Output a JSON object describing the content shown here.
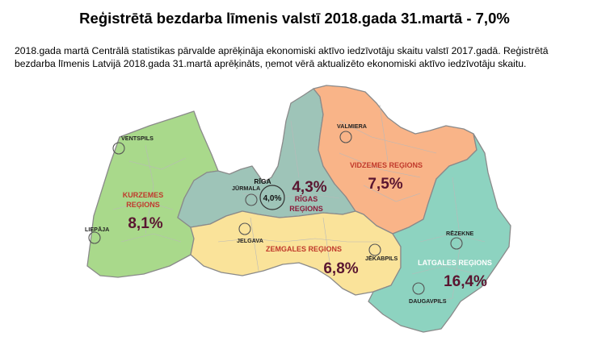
{
  "title": "Reģistrētā bezdarba līmenis valstī 2018.gada 31.martā - 7,0%",
  "intro": "2018.gada martā Centrālā statistikas pārvalde aprēķināja ekonomiski aktīvo iedzīvotāju skaitu valstī 2017.gadā. Reģistrētā bezdarba līmenis Latvijā 2018.gada 31.martā aprēķināts, ņemot vērā aktualizēto ekonomiski aktīvo iedzīvotāju skaitu.",
  "regions": {
    "kurzeme": {
      "name_line1": "KURZEMES",
      "name_line2": "REĢIONS",
      "value": "8,1%",
      "color": "#a9d98b",
      "label_color": "#c0392b"
    },
    "riga": {
      "name_line1": "RĪGAS",
      "name_line2": "REĢIONS",
      "value": "4,3%",
      "color": "#9ec4b8",
      "label_color": "#8b1a3a"
    },
    "vidzeme": {
      "name": "VIDZEMES REĢIONS",
      "value": "7,5%",
      "color": "#f9b488",
      "label_color": "#c0392b"
    },
    "zemgale": {
      "name": "ZEMGALES REĢIONS",
      "value": "6,8%",
      "color": "#fae39a",
      "label_color": "#c0392b"
    },
    "latgale": {
      "name": "LATGALES REĢIONS",
      "value": "16,4%",
      "color": "#8dd3c0",
      "label_color": "#ffffff"
    }
  },
  "riga_city": {
    "label": "RĪGA",
    "value": "4,0%"
  },
  "cities": {
    "ventspils": "VENTSPILS",
    "liepaja": "LIEPĀJA",
    "jurmala": "JŪRMALA",
    "jelgava": "JELGAVA",
    "valmiera": "VALMIERA",
    "jekabpils": "JĒKABPILS",
    "rezekne": "RĒZEKNE",
    "daugavpils": "DAUGAVPILS"
  }
}
